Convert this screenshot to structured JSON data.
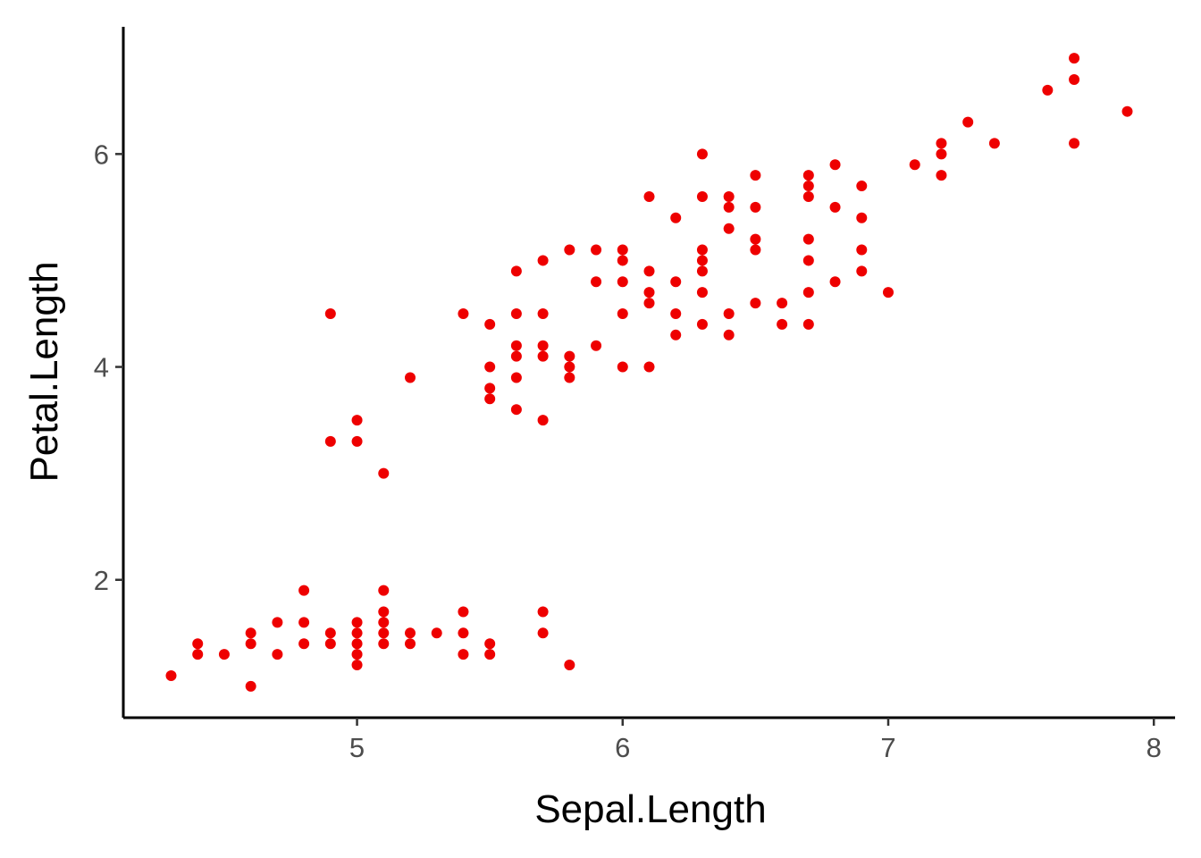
{
  "chart_data": {
    "type": "scatter",
    "xlabel": "Sepal.Length",
    "ylabel": "Petal.Length",
    "xlim": [
      4.12,
      8.08
    ],
    "ylim": [
      0.705,
      7.195
    ],
    "x_ticks": [
      5,
      6,
      7,
      8
    ],
    "y_ticks": [
      2,
      4,
      6
    ],
    "x_tick_labels": [
      "5",
      "6",
      "7",
      "8"
    ],
    "y_tick_labels": [
      "2",
      "4",
      "6"
    ],
    "grid": false,
    "legend": "none",
    "point_color": "#EE0000",
    "series": [
      {
        "points": [
          [
            4.3,
            1.1
          ],
          [
            4.4,
            1.4
          ],
          [
            4.4,
            1.3
          ],
          [
            4.5,
            1.3
          ],
          [
            4.6,
            1.5
          ],
          [
            4.6,
            1.4
          ],
          [
            4.6,
            1.0
          ],
          [
            4.7,
            1.6
          ],
          [
            4.7,
            1.3
          ],
          [
            4.8,
            1.9
          ],
          [
            4.8,
            1.6
          ],
          [
            4.8,
            1.4
          ],
          [
            4.9,
            1.5
          ],
          [
            4.9,
            1.4
          ],
          [
            5.0,
            1.6
          ],
          [
            5.0,
            1.5
          ],
          [
            5.0,
            1.4
          ],
          [
            5.0,
            1.3
          ],
          [
            5.0,
            1.2
          ],
          [
            5.1,
            1.9
          ],
          [
            5.1,
            1.7
          ],
          [
            5.1,
            1.6
          ],
          [
            5.1,
            1.5
          ],
          [
            5.1,
            1.4
          ],
          [
            5.2,
            1.5
          ],
          [
            5.2,
            1.4
          ],
          [
            5.3,
            1.5
          ],
          [
            5.4,
            1.7
          ],
          [
            5.4,
            1.5
          ],
          [
            5.4,
            1.3
          ],
          [
            5.5,
            1.4
          ],
          [
            5.5,
            1.3
          ],
          [
            5.7,
            1.7
          ],
          [
            5.7,
            1.5
          ],
          [
            5.8,
            1.2
          ],
          [
            4.9,
            4.5
          ],
          [
            4.9,
            3.3
          ],
          [
            5.0,
            3.5
          ],
          [
            5.0,
            3.3
          ],
          [
            5.1,
            3.0
          ],
          [
            5.2,
            3.9
          ],
          [
            5.4,
            4.5
          ],
          [
            5.5,
            4.4
          ],
          [
            5.5,
            4.0
          ],
          [
            5.5,
            3.8
          ],
          [
            5.5,
            3.7
          ],
          [
            5.6,
            4.9
          ],
          [
            5.6,
            4.5
          ],
          [
            5.6,
            4.2
          ],
          [
            5.6,
            4.1
          ],
          [
            5.6,
            3.9
          ],
          [
            5.6,
            3.6
          ],
          [
            5.7,
            5.0
          ],
          [
            5.7,
            4.5
          ],
          [
            5.7,
            4.2
          ],
          [
            5.7,
            4.1
          ],
          [
            5.7,
            3.5
          ],
          [
            5.8,
            5.1
          ],
          [
            5.8,
            4.1
          ],
          [
            5.8,
            4.0
          ],
          [
            5.8,
            3.9
          ],
          [
            5.9,
            5.1
          ],
          [
            5.9,
            4.8
          ],
          [
            5.9,
            4.2
          ],
          [
            6.0,
            5.1
          ],
          [
            6.0,
            5.0
          ],
          [
            6.0,
            4.8
          ],
          [
            6.0,
            4.5
          ],
          [
            6.0,
            4.0
          ],
          [
            6.1,
            5.6
          ],
          [
            6.1,
            4.9
          ],
          [
            6.1,
            4.7
          ],
          [
            6.1,
            4.6
          ],
          [
            6.1,
            4.0
          ],
          [
            6.2,
            5.4
          ],
          [
            6.2,
            4.8
          ],
          [
            6.2,
            4.5
          ],
          [
            6.2,
            4.3
          ],
          [
            6.3,
            6.0
          ],
          [
            6.3,
            5.6
          ],
          [
            6.3,
            5.1
          ],
          [
            6.3,
            5.0
          ],
          [
            6.3,
            4.9
          ],
          [
            6.3,
            4.7
          ],
          [
            6.3,
            4.4
          ],
          [
            6.4,
            5.6
          ],
          [
            6.4,
            5.5
          ],
          [
            6.4,
            5.3
          ],
          [
            6.4,
            4.5
          ],
          [
            6.4,
            4.3
          ],
          [
            6.5,
            5.8
          ],
          [
            6.5,
            5.5
          ],
          [
            6.5,
            5.2
          ],
          [
            6.5,
            5.1
          ],
          [
            6.5,
            4.6
          ],
          [
            6.6,
            4.6
          ],
          [
            6.6,
            4.4
          ],
          [
            6.7,
            5.8
          ],
          [
            6.7,
            5.7
          ],
          [
            6.7,
            5.6
          ],
          [
            6.7,
            5.2
          ],
          [
            6.7,
            5.0
          ],
          [
            6.7,
            4.7
          ],
          [
            6.7,
            4.4
          ],
          [
            6.8,
            5.9
          ],
          [
            6.8,
            5.5
          ],
          [
            6.8,
            4.8
          ],
          [
            6.9,
            5.7
          ],
          [
            6.9,
            5.4
          ],
          [
            6.9,
            5.1
          ],
          [
            6.9,
            4.9
          ],
          [
            7.0,
            4.7
          ],
          [
            7.1,
            5.9
          ],
          [
            7.2,
            6.1
          ],
          [
            7.2,
            6.0
          ],
          [
            7.2,
            5.8
          ],
          [
            7.3,
            6.3
          ],
          [
            7.4,
            6.1
          ],
          [
            7.6,
            6.6
          ],
          [
            7.7,
            6.9
          ],
          [
            7.7,
            6.7
          ],
          [
            7.7,
            6.1
          ],
          [
            7.9,
            6.4
          ]
        ]
      }
    ]
  }
}
